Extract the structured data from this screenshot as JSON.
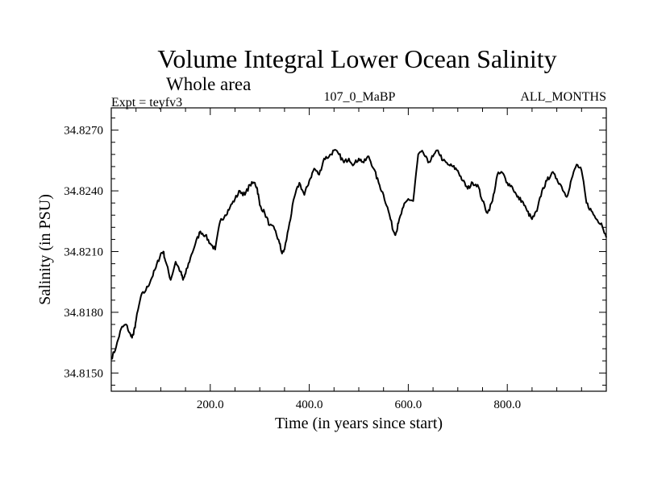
{
  "chart_data": {
    "type": "line",
    "title": "Volume Integral Lower Ocean Salinity",
    "subtitle": "Whole area",
    "left_label": "Expt = teyfv3",
    "center_label": "107_0_MaBP",
    "right_label": "ALL_MONTHS",
    "xlabel": "Time (in years since start)",
    "ylabel": "Salinity (in PSU)",
    "xlim": [
      0,
      1000
    ],
    "ylim": [
      34.8141,
      34.8281
    ],
    "x_ticks": [
      200,
      400,
      600,
      800
    ],
    "x_tick_labels": [
      "200.0",
      "400.0",
      "600.0",
      "800.0"
    ],
    "y_ticks": [
      34.815,
      34.818,
      34.821,
      34.824,
      34.827
    ],
    "y_tick_labels": [
      "34.8150",
      "34.8180",
      "34.8210",
      "34.8240",
      "34.8270"
    ],
    "series": [
      {
        "name": "Salinity",
        "color": "#000000",
        "x": [
          0,
          10,
          20,
          30,
          40,
          45,
          50,
          60,
          70,
          80,
          90,
          100,
          105,
          110,
          120,
          130,
          140,
          145,
          150,
          160,
          170,
          180,
          190,
          200,
          210,
          220,
          230,
          240,
          250,
          260,
          270,
          280,
          290,
          295,
          300,
          310,
          320,
          330,
          340,
          345,
          350,
          360,
          370,
          380,
          390,
          400,
          410,
          420,
          430,
          440,
          450,
          460,
          470,
          480,
          490,
          500,
          510,
          520,
          530,
          540,
          550,
          560,
          570,
          575,
          580,
          590,
          600,
          610,
          620,
          630,
          640,
          650,
          660,
          670,
          680,
          690,
          700,
          710,
          720,
          730,
          740,
          750,
          760,
          770,
          780,
          790,
          800,
          810,
          820,
          830,
          840,
          850,
          860,
          870,
          880,
          890,
          900,
          910,
          920,
          930,
          940,
          950,
          960,
          970,
          980,
          990,
          1000
        ],
        "values": [
          34.8157,
          34.8163,
          34.8172,
          34.8174,
          34.8168,
          34.8169,
          34.8176,
          34.8188,
          34.8191,
          34.8196,
          34.8202,
          34.8209,
          34.821,
          34.8205,
          34.8196,
          34.8205,
          34.82,
          34.8196,
          34.8199,
          34.8207,
          34.8214,
          34.822,
          34.8218,
          34.8214,
          34.8211,
          34.8225,
          34.8228,
          34.8232,
          34.8236,
          34.824,
          34.8238,
          34.8243,
          34.8244,
          34.8241,
          34.8233,
          34.8229,
          34.8223,
          34.8221,
          34.8214,
          34.8209,
          34.8211,
          34.8224,
          34.8237,
          34.8244,
          34.8238,
          34.8245,
          34.8251,
          34.8248,
          34.8256,
          34.8257,
          34.826,
          34.8258,
          34.8254,
          34.8256,
          34.8253,
          34.8256,
          34.8254,
          34.8257,
          34.8251,
          34.8244,
          34.8238,
          34.823,
          34.822,
          34.8219,
          34.8224,
          34.8232,
          34.8236,
          34.8235,
          34.8258,
          34.8259,
          34.8254,
          34.8257,
          34.826,
          34.8255,
          34.8253,
          34.8252,
          34.825,
          34.8245,
          34.8241,
          34.8244,
          34.8243,
          34.8235,
          34.8229,
          34.8235,
          34.8248,
          34.8249,
          34.8244,
          34.8242,
          34.8237,
          34.8235,
          34.823,
          34.8226,
          34.823,
          34.824,
          34.8245,
          34.8249,
          34.8246,
          34.8242,
          34.8237,
          34.8246,
          34.8253,
          34.825,
          34.8234,
          34.823,
          34.8226,
          34.8224,
          34.8217
        ]
      }
    ]
  }
}
